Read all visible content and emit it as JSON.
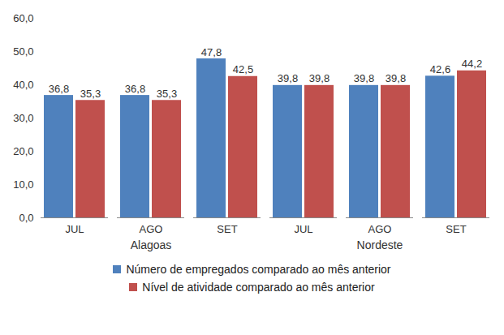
{
  "chart_data": {
    "type": "bar",
    "categories": [
      "JUL",
      "AGO",
      "SET",
      "JUL",
      "AGO",
      "SET"
    ],
    "groups": [
      "Alagoas",
      "Alagoas",
      "Alagoas",
      "Nordeste",
      "Nordeste",
      "Nordeste"
    ],
    "series": [
      {
        "name": "Número de empregados comparado ao mês anterior",
        "color": "#4f81bd",
        "values": [
          36.8,
          36.8,
          47.8,
          39.8,
          39.8,
          42.6
        ],
        "value_labels": [
          "36,8",
          "36,8",
          "47,8",
          "39,8",
          "39,8",
          "42,6"
        ]
      },
      {
        "name": "Nível de atividade comparado ao mês anterior",
        "color": "#c0504d",
        "values": [
          35.3,
          35.3,
          42.5,
          39.8,
          39.8,
          44.2
        ],
        "value_labels": [
          "35,3",
          "35,3",
          "42,5",
          "39,8",
          "39,8",
          "44,2"
        ]
      }
    ],
    "ylim": [
      0,
      60
    ],
    "yticks": [
      {
        "value": 0,
        "label": "0,0"
      },
      {
        "value": 10,
        "label": "10,0"
      },
      {
        "value": 20,
        "label": "20,0"
      },
      {
        "value": 30,
        "label": "30,0"
      },
      {
        "value": 40,
        "label": "40,0"
      },
      {
        "value": 50,
        "label": "50,0"
      },
      {
        "value": 60,
        "label": "60,0"
      }
    ],
    "grid": false,
    "data_labels": true,
    "legend": "bottom"
  }
}
